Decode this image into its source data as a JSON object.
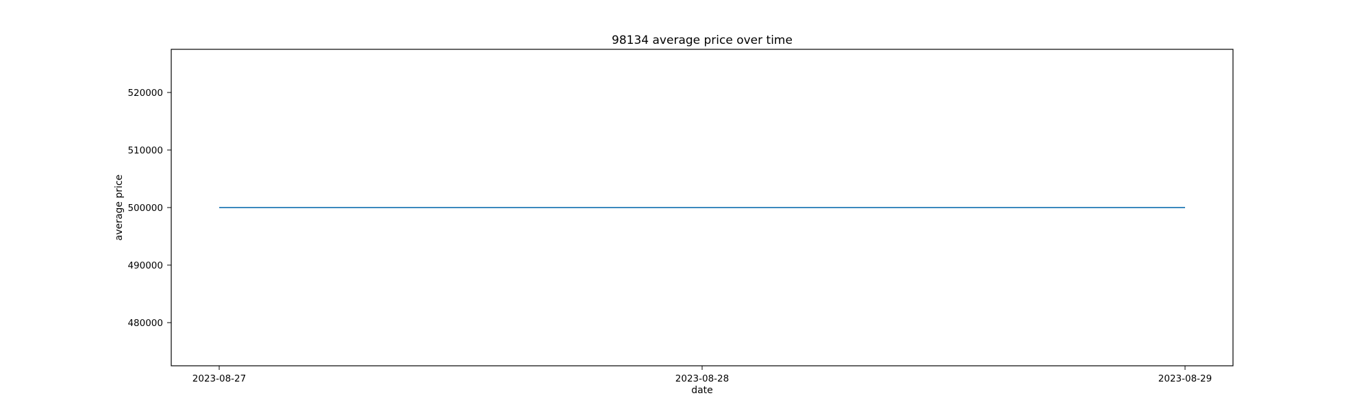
{
  "chart_data": {
    "type": "line",
    "title": "98134 average price over time",
    "xlabel": "date",
    "ylabel": "average price",
    "x": [
      "2023-08-27",
      "2023-08-28",
      "2023-08-29"
    ],
    "series": [
      {
        "values": [
          500000,
          500000,
          500000
        ],
        "color": "#1f77b4"
      }
    ],
    "ylim": [
      472500,
      527500
    ],
    "y_ticks": [
      480000,
      490000,
      500000,
      510000,
      520000
    ],
    "x_ticks": [
      "2023-08-27",
      "2023-08-28",
      "2023-08-29"
    ],
    "grid": false,
    "legend": "none"
  }
}
